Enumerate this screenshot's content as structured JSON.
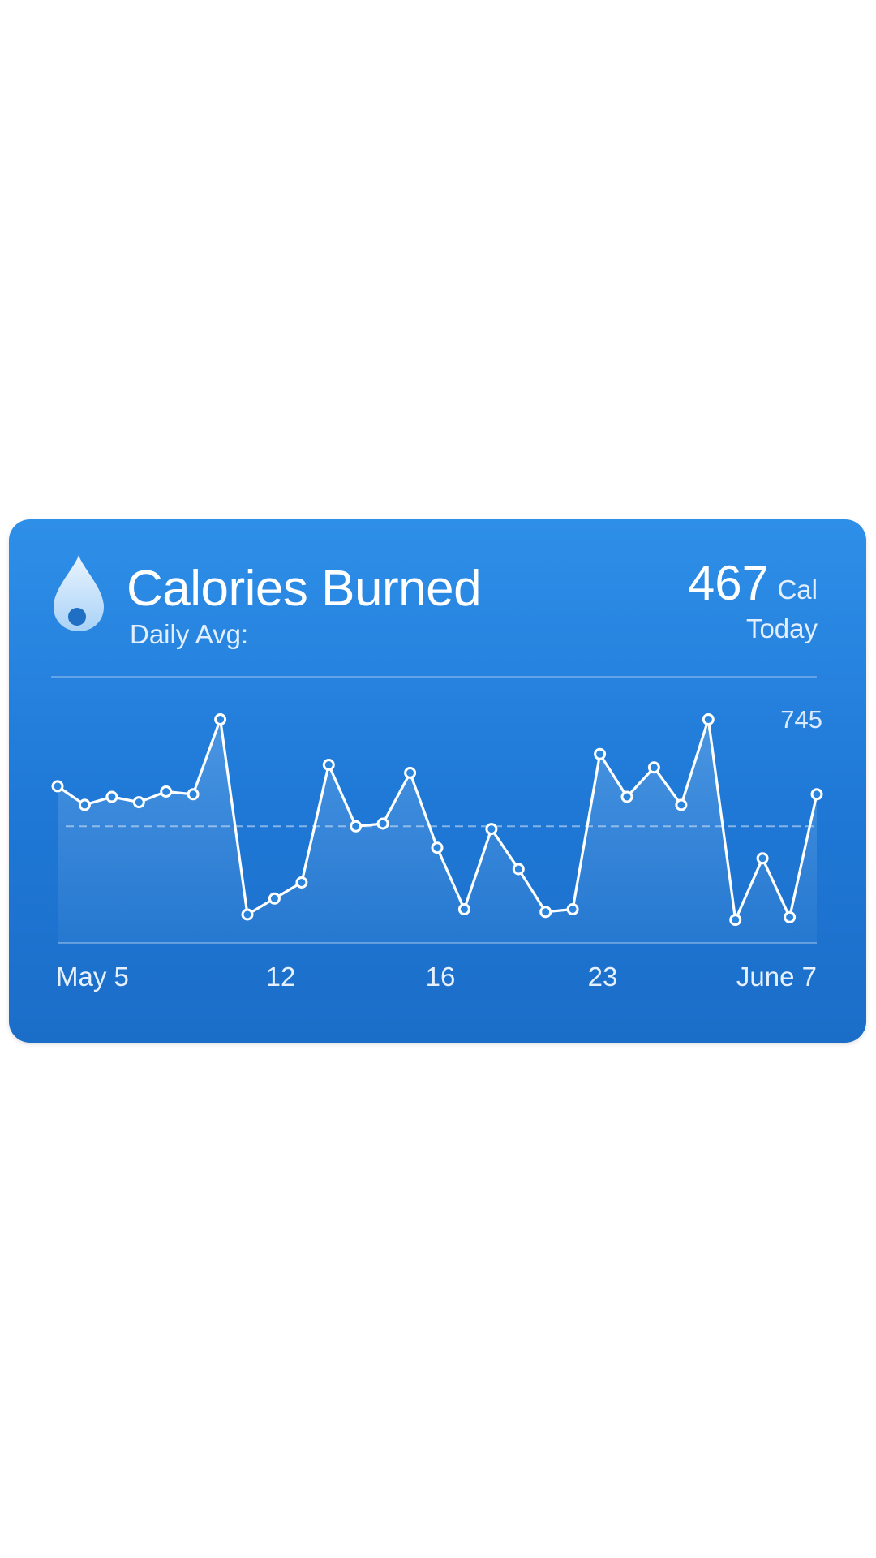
{
  "header": {
    "title": "Calories Burned",
    "subtitle": "Daily Avg:",
    "today_value": "467",
    "today_unit": "Cal",
    "today_label": "Today"
  },
  "colors": {
    "card_top": "#2e8fe8",
    "card_bottom": "#1b6ec8",
    "line": "#ffffff"
  },
  "icons": {
    "header_icon": "water-drop-icon"
  },
  "chart_data": {
    "type": "line",
    "x_ticks": [
      "May 5",
      "12",
      "16",
      "23",
      "June 7"
    ],
    "max_label": "745",
    "values": [
      620,
      585,
      600,
      590,
      610,
      605,
      745,
      380,
      410,
      440,
      660,
      545,
      550,
      645,
      505,
      390,
      540,
      465,
      385,
      390,
      680,
      600,
      655,
      585,
      745,
      370,
      485,
      375,
      605
    ],
    "average": 545,
    "ylim": [
      330,
      770
    ],
    "grid": false,
    "average_line": true
  }
}
